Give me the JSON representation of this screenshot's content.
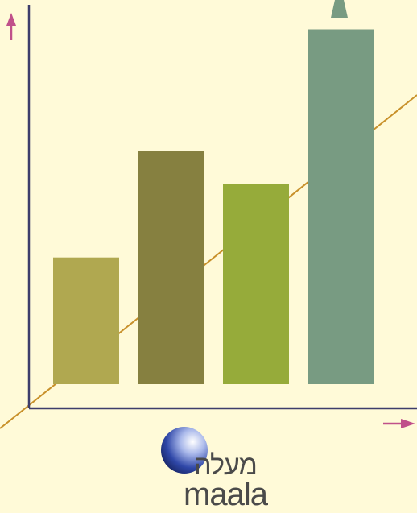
{
  "chart_data": {
    "type": "bar",
    "categories": [
      "",
      "",
      "",
      ""
    ],
    "values": [
      2.5,
      4.6,
      3.95,
      7.0
    ],
    "ylim": [
      0,
      7.5
    ],
    "grid": false,
    "title": "",
    "xlabel": "",
    "ylabel": ""
  },
  "colors": {
    "background": "#fffad8",
    "axis": "#3d3d6b",
    "arrow": "#c0508a",
    "trend_line": "#c8902a",
    "bars": [
      "#b0a850",
      "#868040",
      "#96ab3a",
      "#789b82"
    ]
  },
  "logo": {
    "hebrew": "מעלה",
    "latin": "maala",
    "icon": "globe-icon"
  }
}
